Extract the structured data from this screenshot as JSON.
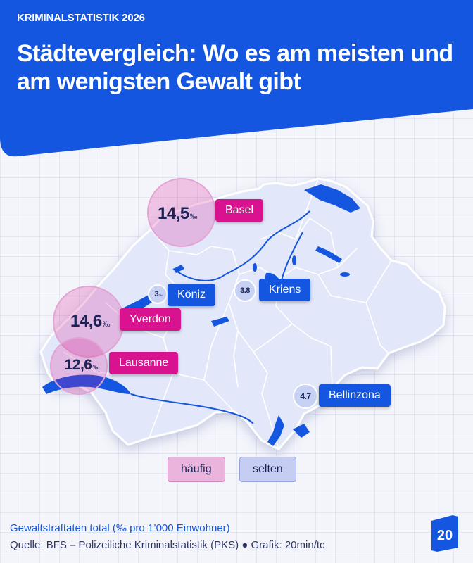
{
  "header": {
    "kicker": "KRIMINALSTATISTIK 2026",
    "title": "Städtevergleich: Wo es am meisten und am wenigsten Gewalt gibt"
  },
  "colors": {
    "brand_blue": "#1456e0",
    "high": "#d9138f",
    "low": "#1456e0",
    "map_fill": "#e2e7f9"
  },
  "value_unit": "‰",
  "cities": [
    {
      "name": "Basel",
      "value": "14,5",
      "category": "häufig"
    },
    {
      "name": "Yverdon",
      "value": "14,6",
      "category": "häufig"
    },
    {
      "name": "Lausanne",
      "value": "12,6",
      "category": "häufig"
    },
    {
      "name": "Köniz",
      "value": "3",
      "category": "selten"
    },
    {
      "name": "Kriens",
      "value": "3.8",
      "category": "selten"
    },
    {
      "name": "Bellinzona",
      "value": "4.7",
      "category": "selten"
    }
  ],
  "legend": {
    "high": "häufig",
    "low": "selten"
  },
  "footer": {
    "caption": "Gewaltstraftaten total (‰ pro 1’000 Einwohner)",
    "source": "Quelle: BFS – Polizeiliche Kriminalstatistik (PKS) ● Grafik: 20min/tc"
  },
  "logo": {
    "text": "20",
    "icon": "20min-logo-icon"
  }
}
